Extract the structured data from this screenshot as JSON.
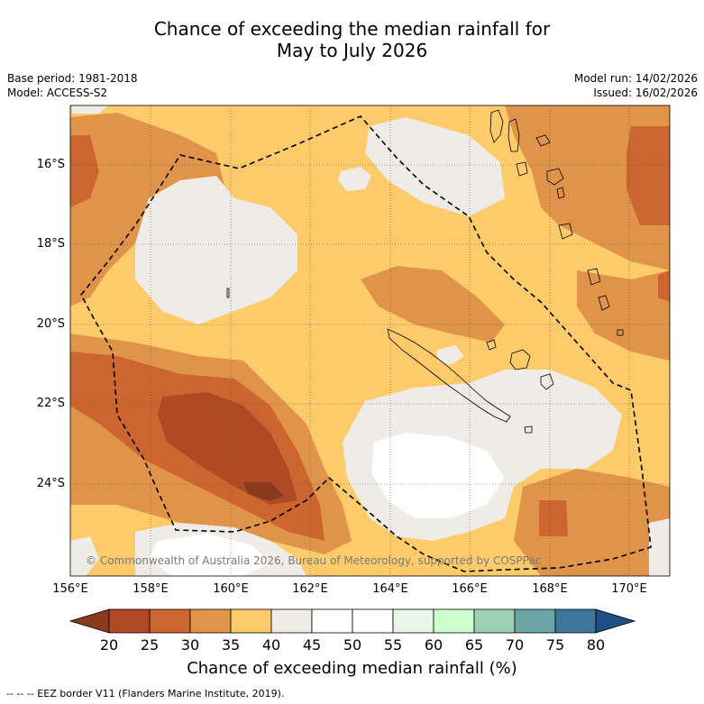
{
  "title_line1": "Chance of exceeding the median rainfall for",
  "title_line2": "May to July 2026",
  "base_period": "Base period: 1981-2018",
  "model": "Model: ACCESS-S2",
  "model_run": "Model run: 14/02/2026",
  "issued": "Issued: 16/02/2026",
  "lat_ticks": [
    "16°S",
    "18°S",
    "20°S",
    "22°S",
    "24°S"
  ],
  "lon_ticks": [
    "156°E",
    "158°E",
    "160°E",
    "162°E",
    "164°E",
    "166°E",
    "168°E",
    "170°E"
  ],
  "copyright": "© Commonwealth of Australia 2026, Bureau of Meteorology, supported by COSPPac",
  "colorbar": {
    "label": "Chance of exceeding median rainfall (%)",
    "ticks": [
      "20",
      "25",
      "30",
      "35",
      "40",
      "45",
      "50",
      "55",
      "60",
      "65",
      "70",
      "75",
      "80"
    ],
    "colors": [
      "#8b3a1f",
      "#b04a25",
      "#cc6530",
      "#e0944a",
      "#fdcb6a",
      "#efebe6",
      "#ffffff",
      "#ffffff",
      "#e8f5e8",
      "#ccffcc",
      "#9ed0b5",
      "#6ca5a5",
      "#3e7699",
      "#1d4f86"
    ]
  },
  "footnote": "--  --  -- EEZ border V11 (Flanders Marine Institute, 2019).",
  "map_data": {
    "lon_range": [
      156,
      171
    ],
    "lat_range": [
      -26.3,
      -14.5
    ],
    "regions": [
      "New Caledonia",
      "Vanuatu"
    ],
    "layers": [
      "rainfall probability shading",
      "coastlines",
      "EEZ border",
      "graticule"
    ]
  }
}
